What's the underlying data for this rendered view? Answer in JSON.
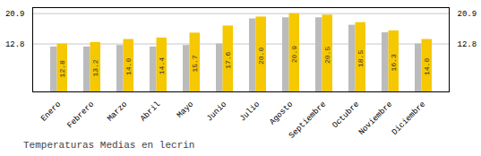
{
  "chart_data": {
    "type": "bar",
    "title": "Temperaturas Medias en lecrin",
    "categories": [
      "Enero",
      "Febrero",
      "Marzo",
      "Abril",
      "Mayo",
      "Junio",
      "Julio",
      "Agosto",
      "Septiembre",
      "Octubre",
      "Noviembre",
      "Diciembre"
    ],
    "series": [
      {
        "color": "#BBBBBB",
        "values": [
          12.0,
          12.0,
          12.4,
          12.0,
          12.4,
          12.8,
          19.5,
          19.8,
          19.8,
          17.8,
          15.8,
          12.8
        ]
      },
      {
        "color": "#F5C800",
        "values": [
          12.8,
          13.2,
          14.0,
          14.4,
          15.7,
          17.6,
          20.0,
          20.9,
          20.5,
          18.5,
          16.3,
          14.0
        ],
        "value_labels": [
          "12.8",
          "13.2",
          "14.0",
          "14.4",
          "15.7",
          "17.6",
          "20.0",
          "20.9",
          "20.5",
          "18.5",
          "16.3",
          "14.0"
        ]
      }
    ],
    "ylim": [
      0,
      22.5
    ],
    "yticks": [
      12.8,
      20.9
    ],
    "grid": true,
    "data_labels": true
  }
}
